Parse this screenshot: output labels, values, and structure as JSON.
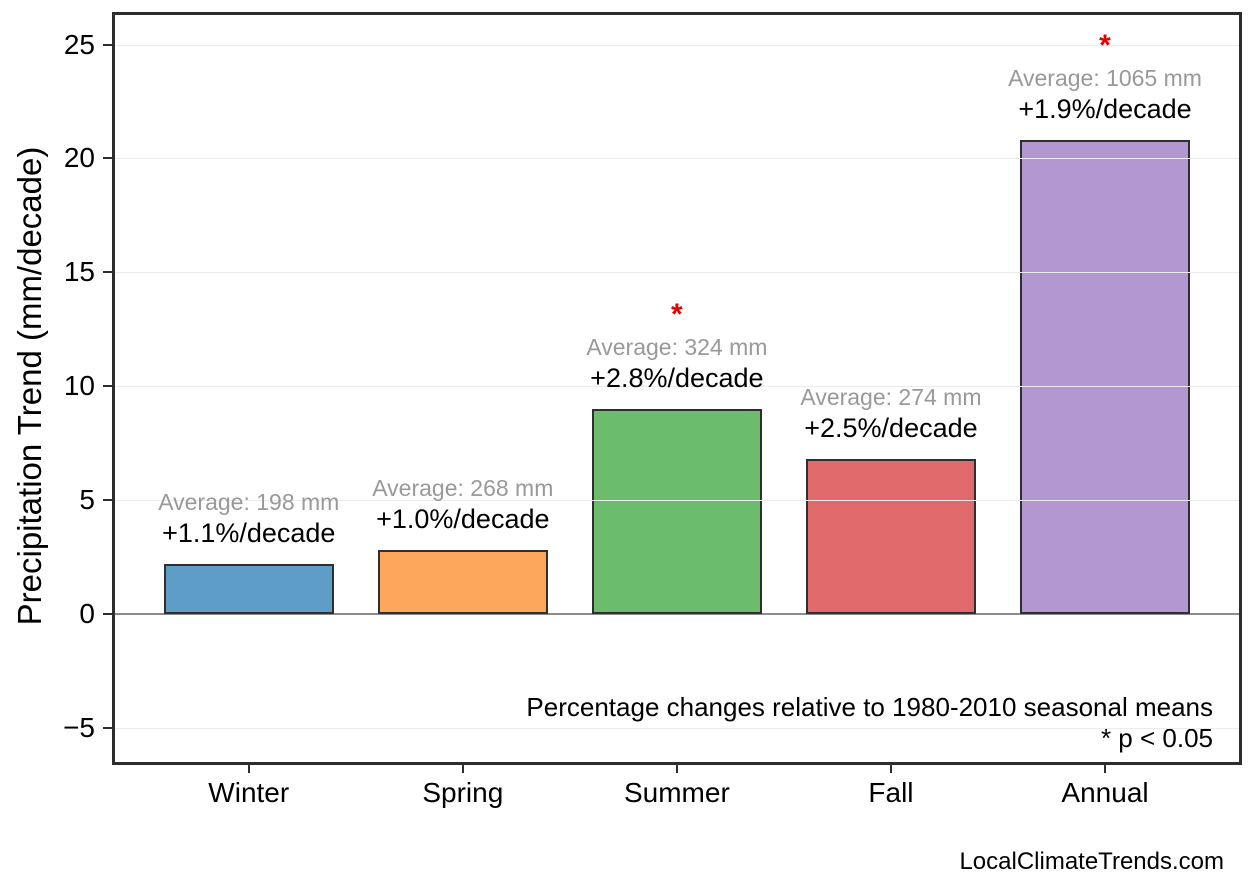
{
  "chart_data": {
    "type": "bar",
    "title": "",
    "ylabel": "Precipitation Trend (mm/decade)",
    "xlabel": "",
    "categories": [
      "Winter",
      "Spring",
      "Summer",
      "Fall",
      "Annual"
    ],
    "values": [
      2.2,
      2.8,
      9.0,
      6.8,
      20.8
    ],
    "bars": [
      {
        "label": "Winter",
        "value": 2.2,
        "color": "#5F9DC9",
        "average_label": "Average: 198 mm",
        "percent_label": "+1.1%/decade",
        "significant": false
      },
      {
        "label": "Spring",
        "value": 2.8,
        "color": "#FCA75A",
        "average_label": "Average: 268 mm",
        "percent_label": "+1.0%/decade",
        "significant": false
      },
      {
        "label": "Summer",
        "value": 9.0,
        "color": "#6BBD6D",
        "average_label": "Average: 324 mm",
        "percent_label": "+2.8%/decade",
        "significant": true
      },
      {
        "label": "Fall",
        "value": 6.8,
        "color": "#E06A6B",
        "average_label": "Average: 274 mm",
        "percent_label": "+2.5%/decade",
        "significant": false
      },
      {
        "label": "Annual",
        "value": 20.8,
        "color": "#B297D0",
        "average_label": "Average: 1065 mm",
        "percent_label": "+1.9%/decade",
        "significant": true
      }
    ],
    "averages_mm": [
      198,
      268,
      324,
      274,
      1065
    ],
    "percent_per_decade": [
      "+1.1%/decade",
      "+1.0%/decade",
      "+2.8%/decade",
      "+2.5%/decade",
      "+1.9%/decade"
    ],
    "significance_marker": "*",
    "yticks": [
      25,
      20,
      15,
      10,
      5,
      0,
      -5
    ],
    "ytick_labels": [
      "25",
      "20",
      "15",
      "10",
      "5",
      "0",
      "−5"
    ],
    "ylim": [
      -6.5,
      26.3
    ],
    "grid": true,
    "legend": false,
    "annotations": [
      "Percentage changes relative to 1980-2010 seasonal means",
      "* p < 0.05"
    ],
    "watermark": "LocalClimateTrends.com",
    "colors": {
      "axis": "#2D2D2D",
      "grid": "#ECECEC",
      "zero_line": "#8C8C8C",
      "average_text": "#999999",
      "percent_text": "#000000",
      "asterisk": "#E80000",
      "background": "#FFFFFF"
    }
  }
}
